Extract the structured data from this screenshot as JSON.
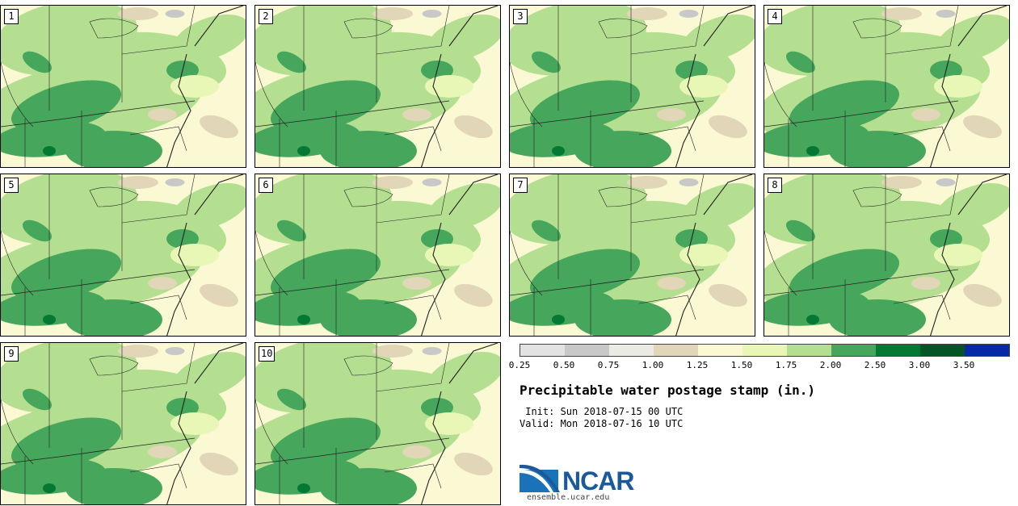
{
  "title": "Precipitable water postage stamp (in.)",
  "init_line": " Init: Sun 2018-07-15 00 UTC",
  "valid_line": "Valid: Mon 2018-07-16 10 UTC",
  "logo": {
    "name": "NCAR",
    "url": "ensemble.ucar.edu"
  },
  "colorbar": {
    "colors": [
      "#e2e2e2",
      "#c8c8c8",
      "#ecebe3",
      "#e2d6b8",
      "#fbf9d4",
      "#e9f7b6",
      "#b5df90",
      "#45a65c",
      "#047934",
      "#035426",
      "#0729a8"
    ],
    "tick_labels": [
      "0.25",
      "0.50",
      "0.75",
      "1.00",
      "1.25",
      "1.50",
      "1.75",
      "2.00",
      "2.50",
      "3.00",
      "3.50"
    ]
  },
  "members": [
    "1",
    "2",
    "3",
    "4",
    "5",
    "6",
    "7",
    "8",
    "9",
    "10"
  ]
}
